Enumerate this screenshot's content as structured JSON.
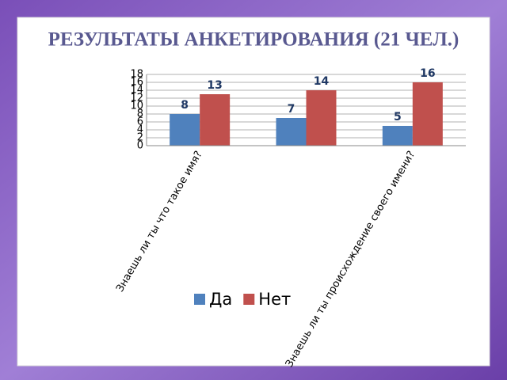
{
  "chart_data": {
    "type": "bar",
    "title": "РЕЗУЛЬТАТЫ АНКЕТИРОВАНИЯ (21 ЧЕЛ.)",
    "categories": [
      "Знаешь ли ты что такое имя?",
      null,
      "Знаешь ли ты происхождение своего имени?"
    ],
    "series": [
      {
        "name": "Да",
        "color": "#4f81bd",
        "values": [
          8,
          7,
          5
        ]
      },
      {
        "name": "Нет",
        "color": "#c0504d",
        "values": [
          13,
          14,
          16
        ]
      }
    ],
    "ylim": [
      0,
      18
    ],
    "yticks": [
      0,
      2,
      4,
      6,
      8,
      10,
      12,
      14,
      16,
      18
    ],
    "grid": true,
    "legend": "bottom"
  }
}
